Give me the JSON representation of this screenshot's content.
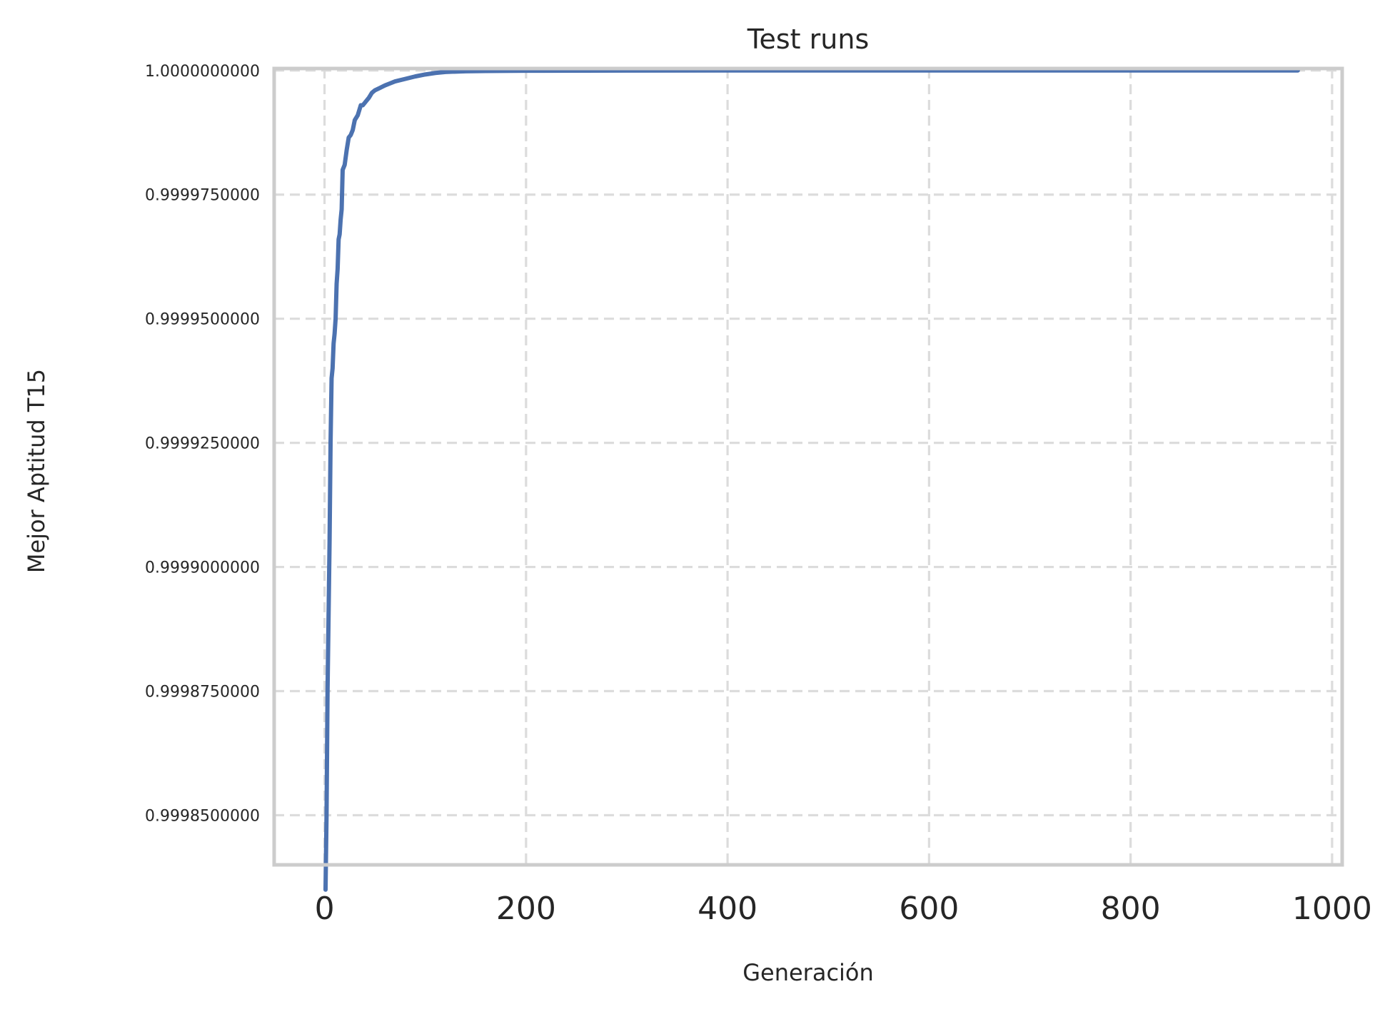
{
  "chart_data": {
    "type": "line",
    "title": "Test runs",
    "xlabel": "Generación",
    "ylabel": "Mejor Aptitud T15",
    "xlim": [
      -50,
      1010
    ],
    "ylim": [
      0.99984,
      1.0000004
    ],
    "grid": true,
    "legend": "none",
    "x_ticks": [
      0,
      200,
      400,
      600,
      800,
      1000
    ],
    "x_tick_labels": [
      "0",
      "200",
      "400",
      "600",
      "800",
      "1000"
    ],
    "y_ticks": [
      0.99985,
      0.999875,
      0.9999,
      0.999925,
      0.99995,
      0.999975,
      1.0
    ],
    "y_tick_labels": [
      "0.9998500000",
      "0.9998750000",
      "0.9999000000",
      "0.9999250000",
      "0.9999500000",
      "0.9999750000",
      "1.0000000000"
    ],
    "colors": {
      "series": "#4c72b0",
      "grid": "#dcdcdc",
      "frame": "#cccccc",
      "text": "#262626"
    },
    "series": [
      {
        "x": [
          1,
          2,
          3,
          4,
          5,
          6,
          7,
          8,
          9,
          10,
          11,
          12,
          13,
          14,
          15,
          16,
          17,
          18,
          20,
          22,
          24,
          26,
          28,
          30,
          33,
          36,
          38,
          40,
          42,
          44,
          47,
          50,
          55,
          58,
          60,
          65,
          70,
          80,
          90,
          100,
          110,
          120,
          140,
          160,
          200,
          300,
          400,
          500,
          700,
          966
        ],
        "y": [
          0.999835,
          0.99985,
          0.999875,
          0.99989,
          0.999905,
          0.999925,
          0.999938,
          0.99994,
          0.999945,
          0.999947,
          0.99995,
          0.999957,
          0.99996,
          0.999966,
          0.999967,
          0.99997,
          0.999972,
          0.99998,
          0.999981,
          0.999984,
          0.9999865,
          0.999987,
          0.999988,
          0.99999,
          0.999991,
          0.999993,
          0.999993,
          0.9999935,
          0.999994,
          0.9999945,
          0.9999955,
          0.999996,
          0.9999965,
          0.9999968,
          0.999997,
          0.9999974,
          0.9999978,
          0.9999983,
          0.9999988,
          0.9999992,
          0.9999995,
          0.9999997,
          0.99999985,
          0.9999999,
          0.99999995,
          0.99999998,
          1.0,
          1.0,
          1.0,
          1.0
        ]
      }
    ]
  }
}
